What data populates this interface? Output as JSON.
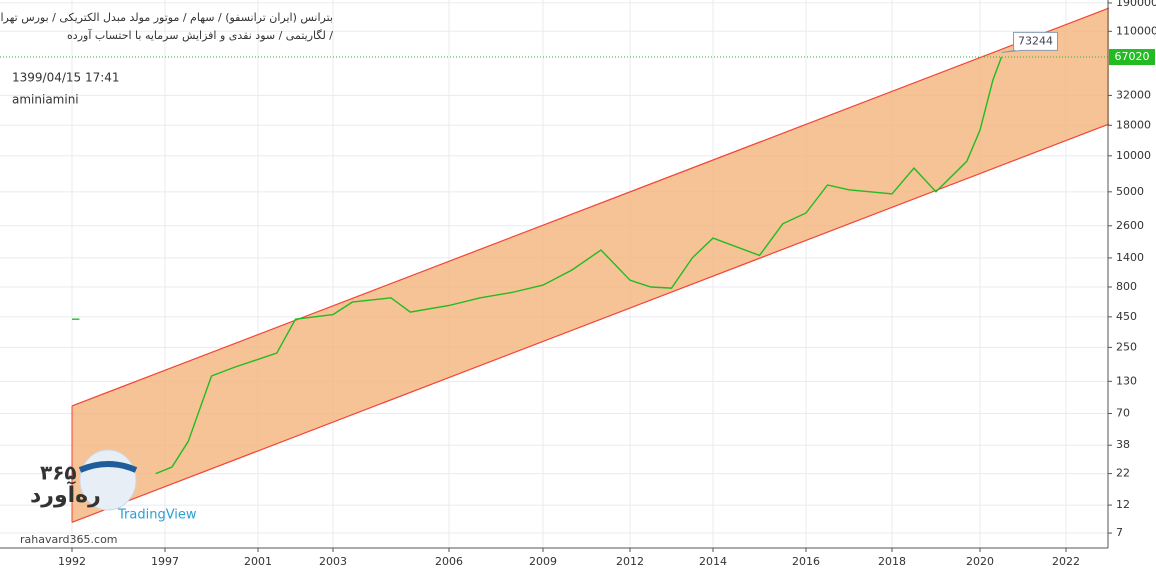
{
  "chart_data": {
    "type": "line",
    "title": "بترانس (ایران ترانسفو) / سهام / موتور مولد مبدل الکتریکی / بورس تهران",
    "subtitle": "لگاریتمی / سود نقدی و افزایش سرمایه با احتساب آورده /",
    "timestamp": "1399/04/15 17:41",
    "author": "aminiamini",
    "watermark": {
      "brand": "ره‌آورد",
      "number": "۳۶۵",
      "site": "rahavard365.com",
      "platform": "TradingView"
    },
    "x": [
      1992.0,
      1992.4,
      1995.5,
      1996.5,
      1997.3,
      1998.0,
      1999.0,
      2000.0,
      2001.5,
      2002.0,
      2003.0,
      2003.5,
      2004.5,
      2005.0,
      2006.0,
      2007.0,
      2008.0,
      2009.0,
      2010.0,
      2011.0,
      2012.0,
      2012.5,
      2013.0,
      2013.5,
      2014.0,
      2015.0,
      2015.5,
      2016.0,
      2016.5,
      2017.0,
      2018.0,
      2018.5,
      2019.0,
      2019.7,
      2020.0,
      2020.3,
      2020.5
    ],
    "values": [
      430,
      430,
      null,
      22,
      25,
      41,
      144,
      171,
      224,
      430,
      470,
      598,
      650,
      493,
      560,
      650,
      720,
      830,
      1110,
      1630,
      912,
      800,
      783,
      1400,
      2050,
      1470,
      2700,
      3325,
      5700,
      5200,
      4800,
      7900,
      5000,
      9000,
      16400,
      43000,
      67020
    ],
    "color": "#22bb22",
    "channel": {
      "color": "#f44336",
      "fill": "#f2b47a",
      "upper": {
        "x": [
          1992,
          2023
        ],
        "values": [
          81,
          172000
        ]
      },
      "lower": {
        "x": [
          1992,
          2023
        ],
        "values": [
          8.6,
          18450
        ]
      }
    },
    "last_price": 67020,
    "callout": 73244,
    "log_scale": true,
    "grid": true,
    "ylim": [
      5.25,
      201000
    ],
    "yticks": [
      7,
      12,
      22,
      38,
      70,
      130,
      250,
      450,
      800,
      1400,
      2600,
      5000,
      10000,
      18000,
      32000,
      110000,
      190000
    ],
    "xticks": [
      1992,
      1997,
      2001,
      2003,
      2006,
      2009,
      2012,
      2014,
      2016,
      2018,
      2020,
      2022
    ]
  }
}
